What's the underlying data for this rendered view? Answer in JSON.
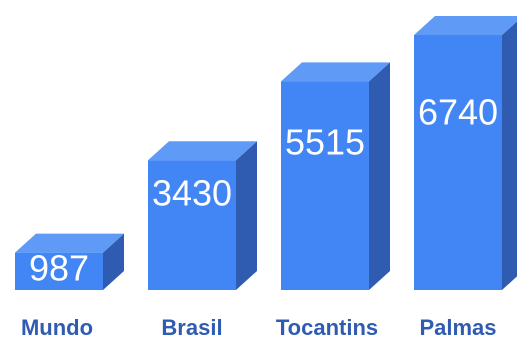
{
  "chart_data": {
    "type": "bar",
    "style": "3d-column",
    "categories": [
      "Mundo",
      "Brasil",
      "Tocantins",
      "Palmas"
    ],
    "values": [
      987,
      3430,
      5515,
      6740
    ],
    "data_labels": [
      "987",
      "3430",
      "5515",
      "6740"
    ],
    "title": "",
    "xlabel": "",
    "ylabel": "",
    "grid": false,
    "legend": "none",
    "colors": {
      "front": "#4285F4",
      "top": "#5F9BF6",
      "side": "#2F5CB0",
      "value_text": "#FFFFFF",
      "category_text": "#2F5CB0"
    }
  }
}
